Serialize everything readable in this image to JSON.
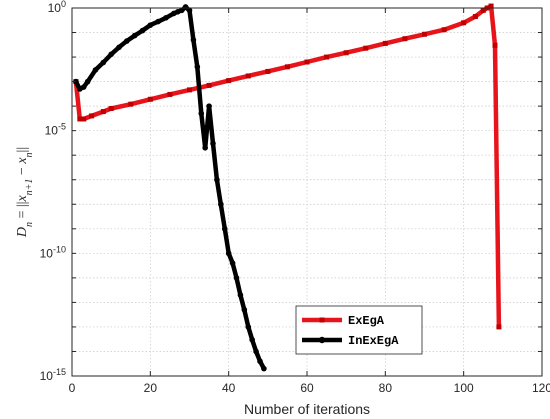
{
  "chart_data": {
    "type": "line",
    "title": "",
    "xlabel": "Number of iterations",
    "ylabel": "D_n = ||x_{n+1} - x_n||",
    "ylabel_parts": {
      "lhs": "D",
      "lhs_sub": "n",
      "eq": " = ||",
      "x1": "x",
      "x1_sub": "n+1",
      "minus": " − ",
      "x2": "x",
      "x2_sub": "n",
      "close": "||"
    },
    "xlim": [
      0,
      120
    ],
    "ylim": [
      1e-15,
      1
    ],
    "yscale": "log",
    "grid": true,
    "legend_position": "bottom-right",
    "x_ticks": [
      0,
      20,
      40,
      60,
      80,
      100,
      120
    ],
    "y_ticks": [
      {
        "value": 1.0,
        "base": "10",
        "exp": "0"
      },
      {
        "value": 1e-05,
        "base": "10",
        "exp": "-5"
      },
      {
        "value": 1e-10,
        "base": "10",
        "exp": "-10"
      },
      {
        "value": 1e-15,
        "base": "10",
        "exp": "-15"
      }
    ],
    "series": [
      {
        "name": "ExEgA",
        "color": "#e8141b",
        "marker_color": "#c00000",
        "x": [
          1,
          2,
          3,
          5,
          8,
          10,
          15,
          20,
          25,
          30,
          35,
          40,
          45,
          50,
          55,
          60,
          65,
          70,
          75,
          80,
          85,
          90,
          95,
          100,
          103,
          105,
          106,
          107,
          108,
          109
        ],
        "y": [
          0.001,
          3e-05,
          3e-05,
          4e-05,
          6e-05,
          8e-05,
          0.00012,
          0.00019,
          0.0003,
          0.00046,
          0.0007,
          0.0011,
          0.0017,
          0.0026,
          0.004,
          0.0063,
          0.01,
          0.015,
          0.023,
          0.036,
          0.056,
          0.085,
          0.13,
          0.25,
          0.45,
          0.8,
          1.0,
          1.2,
          0.03,
          1e-13
        ]
      },
      {
        "name": "InExEgA",
        "color": "#000000",
        "marker_color": "#000000",
        "x": [
          1,
          2,
          3,
          4,
          6,
          8,
          10,
          12,
          14,
          16,
          18,
          20,
          22,
          24,
          26,
          27,
          28,
          29,
          30,
          31,
          32,
          33,
          34,
          35,
          36,
          37,
          38,
          39,
          40,
          41,
          42,
          43,
          44,
          45,
          46,
          47,
          48,
          49
        ],
        "y": [
          0.001,
          0.0005,
          0.0006,
          0.001,
          0.003,
          0.006,
          0.013,
          0.025,
          0.045,
          0.075,
          0.12,
          0.2,
          0.28,
          0.4,
          0.6,
          0.7,
          0.8,
          1.1,
          0.8,
          0.05,
          0.004,
          5e-05,
          2e-06,
          0.0001,
          3e-06,
          1e-07,
          1e-08,
          1e-09,
          1e-10,
          4e-11,
          1e-11,
          2e-12,
          5e-13,
          1e-13,
          3e-14,
          1e-14,
          4e-15,
          2e-15
        ]
      }
    ]
  }
}
